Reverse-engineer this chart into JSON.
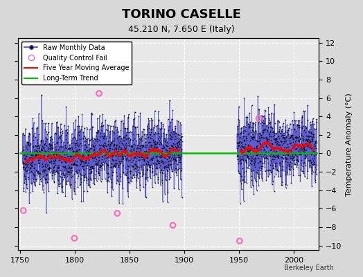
{
  "title": "TORINO CASELLE",
  "subtitle": "45.210 N, 7.650 E (Italy)",
  "ylabel_right": "Temperature Anomaly (°C)",
  "watermark": "Berkeley Earth",
  "xlim": [
    1748,
    2023
  ],
  "ylim": [
    -10.5,
    12.5
  ],
  "yticks": [
    -10,
    -8,
    -6,
    -4,
    -2,
    0,
    2,
    4,
    6,
    8,
    10,
    12
  ],
  "xticks": [
    1750,
    1800,
    1850,
    1900,
    1950,
    2000
  ],
  "bg_color": "#d8d8d8",
  "plot_bg_color": "#e8e8e8",
  "grid_color": "#ffffff",
  "raw_line_color": "#4444cc",
  "raw_dot_color": "#000000",
  "qc_color": "#ff69b4",
  "moving_avg_color": "#ff0000",
  "trend_color": "#00bb00",
  "segment1_start": 1752,
  "segment1_end": 1898,
  "segment2_start": 1948,
  "segment2_end": 2021,
  "seed": 42,
  "legend_entries": [
    "Raw Monthly Data",
    "Quality Control Fail",
    "Five Year Moving Average",
    "Long-Term Trend"
  ]
}
